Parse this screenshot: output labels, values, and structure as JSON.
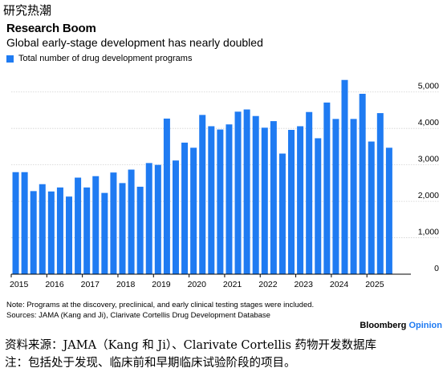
{
  "cn_title": "研究热潮",
  "chart_data": {
    "type": "bar",
    "title": "Research Boom",
    "subtitle": "Global early-stage development has nearly doubled",
    "series": [
      {
        "name": "Total number of drug development programs",
        "color": "#1f7bf2",
        "values": [
          2800,
          2800,
          2280,
          2470,
          2270,
          2380,
          2130,
          2650,
          2380,
          2690,
          2230,
          2790,
          2500,
          2870,
          2400,
          3050,
          3000,
          4270,
          3120,
          3610,
          3470,
          4370,
          4060,
          3970,
          4110,
          4460,
          4520,
          4340,
          4020,
          4200,
          3310,
          3960,
          4060,
          4450,
          3730,
          4710,
          4260,
          5330,
          4260,
          4950,
          3640,
          4420,
          3470
        ]
      }
    ],
    "x_start_year": 2015,
    "x_tick_labels": [
      "2015",
      "2016",
      "2017",
      "2018",
      "2019",
      "2020",
      "2021",
      "2022",
      "2023",
      "2024",
      "2025"
    ],
    "y_tick_labels": [
      "0",
      "1,000",
      "2,000",
      "3,000",
      "4,000",
      "5,000"
    ],
    "ylim": [
      0,
      5500
    ],
    "y_ticks": [
      0,
      1000,
      2000,
      3000,
      4000,
      5000
    ],
    "gridlines": true
  },
  "note_lines": [
    "Note: Programs at the discovery, preclinical, and early clinical testing stages were included.",
    "Sources: JAMA (Kang and Ji), Clarivate Cortellis Drug Development Database"
  ],
  "brand": {
    "name": "Bloomberg",
    "section": "Opinion"
  },
  "cn_source_lines": [
    "资料来源：JAMA（Kang 和 Ji）、Clarivate Cortellis 药物开发数据库",
    "注：包括处于发现、临床前和早期临床试验阶段的项目。"
  ]
}
